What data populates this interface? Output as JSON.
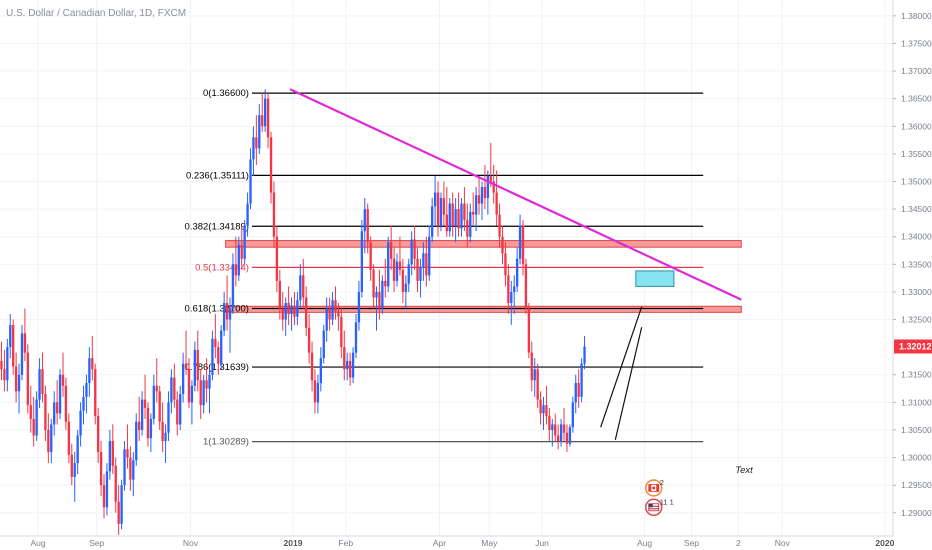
{
  "chart_data": {
    "type": "candlestick",
    "title": "U.S. Dollar / Canadian Dollar, 1D, FXCM",
    "y_axis": {
      "min": 1.2875,
      "max": 1.3825,
      "tick_labels": [
        "1.38000",
        "1.37500",
        "1.37000",
        "1.36500",
        "1.36000",
        "1.35500",
        "1.35000",
        "1.34500",
        "1.34000",
        "1.33500",
        "1.33000",
        "1.32500",
        "1.31500",
        "1.31000",
        "1.30500",
        "1.30000",
        "1.29500",
        "1.29000"
      ],
      "tick_values": [
        1.38,
        1.375,
        1.37,
        1.365,
        1.36,
        1.355,
        1.35,
        1.345,
        1.34,
        1.335,
        1.33,
        1.325,
        1.315,
        1.31,
        1.305,
        1.3,
        1.295,
        1.29
      ]
    },
    "x_axis": {
      "tick_labels": [
        "Aug",
        "Sep",
        "Nov",
        "2019",
        "Feb",
        "Apr",
        "May",
        "Jun",
        "Aug",
        "Sep",
        "2",
        "Nov",
        "2020"
      ],
      "bold_labels": [
        "2019",
        "2020"
      ],
      "tick_bars": [
        13,
        33,
        65,
        100,
        118,
        150,
        167,
        185,
        220,
        236,
        252,
        267,
        302
      ]
    },
    "last_price": {
      "label": "1.32012",
      "value": 1.32012
    },
    "fibonacci": [
      {
        "label": "0(1.36600)",
        "value": 1.366,
        "color": "#000000"
      },
      {
        "label": "0.236(1.35111)",
        "value": 1.35111,
        "color": "#000000"
      },
      {
        "label": "0.382(1.34189)",
        "value": 1.34189,
        "color": "#000000"
      },
      {
        "label": "0.5(1.33444)",
        "value": 1.33444,
        "color": "#e8374a"
      },
      {
        "label": "0.618(1.32700)",
        "value": 1.327,
        "color": "#000000"
      },
      {
        "label": "0.786(1.31639)",
        "value": 1.31639,
        "color": "#000000"
      },
      {
        "label": "1(1.30289)",
        "value": 1.30289,
        "color": "#555555"
      }
    ],
    "fib_x_range_bars": [
      86,
      240
    ],
    "zones": [
      {
        "from_bar": 77,
        "to_bar": 253,
        "low": 1.3381,
        "high": 1.3393,
        "color": "#f07a7a"
      },
      {
        "from_bar": 77,
        "to_bar": 253,
        "low": 1.3263,
        "high": 1.3274,
        "color": "#f07a7a"
      },
      {
        "from_bar": 217,
        "to_bar": 230,
        "low": 1.331,
        "high": 1.3338,
        "color": "#7fe3ef"
      }
    ],
    "trendline": {
      "from": [
        99,
        1.3667
      ],
      "to": [
        253,
        1.3286
      ],
      "color": "#e028d8"
    },
    "wedge_lines": [
      {
        "from": [
          205,
          1.3055
        ],
        "to": [
          219,
          1.3273
        ]
      },
      {
        "from": [
          210,
          1.3032
        ],
        "to": [
          219,
          1.3236
        ]
      }
    ],
    "annotation": "Text",
    "events": [
      {
        "flag": "CAD",
        "count": "2",
        "bar": 218,
        "y": 1.2945
      },
      {
        "flag": "USD",
        "count": "11 1",
        "bar": 218,
        "y": 1.291
      }
    ],
    "candles": [
      [
        1.3175,
        1.321,
        1.314,
        1.316
      ],
      [
        1.316,
        1.3195,
        1.312,
        1.314
      ],
      [
        1.314,
        1.3215,
        1.312,
        1.32
      ],
      [
        1.32,
        1.326,
        1.318,
        1.324
      ],
      [
        1.324,
        1.325,
        1.315,
        1.3165
      ],
      [
        1.3165,
        1.319,
        1.31,
        1.312
      ],
      [
        1.312,
        1.317,
        1.308,
        1.315
      ],
      [
        1.315,
        1.324,
        1.314,
        1.3225
      ],
      [
        1.3225,
        1.327,
        1.3175,
        1.319
      ],
      [
        1.319,
        1.3205,
        1.308,
        1.3095
      ],
      [
        1.3095,
        1.313,
        1.3045,
        1.307
      ],
      [
        1.307,
        1.311,
        1.302,
        1.304
      ],
      [
        1.304,
        1.312,
        1.303,
        1.3105
      ],
      [
        1.3105,
        1.318,
        1.309,
        1.316
      ],
      [
        1.316,
        1.319,
        1.31,
        1.3115
      ],
      [
        1.3115,
        1.313,
        1.303,
        1.305
      ],
      [
        1.305,
        1.308,
        1.299,
        1.301
      ],
      [
        1.301,
        1.307,
        1.299,
        1.306
      ],
      [
        1.306,
        1.312,
        1.304,
        1.31
      ],
      [
        1.31,
        1.314,
        1.306,
        1.308
      ],
      [
        1.308,
        1.316,
        1.307,
        1.315
      ],
      [
        1.315,
        1.319,
        1.311,
        1.313
      ],
      [
        1.313,
        1.3145,
        1.305,
        1.3065
      ],
      [
        1.3065,
        1.308,
        1.299,
        1.3005
      ],
      [
        1.3005,
        1.3025,
        1.295,
        1.2965
      ],
      [
        1.2965,
        1.301,
        1.292,
        1.299
      ],
      [
        1.299,
        1.305,
        1.297,
        1.304
      ],
      [
        1.304,
        1.31,
        1.302,
        1.3085
      ],
      [
        1.3085,
        1.313,
        1.306,
        1.311
      ],
      [
        1.311,
        1.315,
        1.308,
        1.3135
      ],
      [
        1.3135,
        1.32,
        1.311,
        1.318
      ],
      [
        1.318,
        1.322,
        1.314,
        1.316
      ],
      [
        1.316,
        1.317,
        1.306,
        1.3075
      ],
      [
        1.3075,
        1.309,
        1.299,
        1.301
      ],
      [
        1.301,
        1.303,
        1.293,
        1.295
      ],
      [
        1.295,
        1.297,
        1.289,
        1.291
      ],
      [
        1.291,
        1.299,
        1.2895,
        1.2975
      ],
      [
        1.2975,
        1.305,
        1.296,
        1.303
      ],
      [
        1.303,
        1.306,
        1.297,
        1.2985
      ],
      [
        1.2985,
        1.3,
        1.29,
        1.292
      ],
      [
        1.292,
        1.295,
        1.286,
        1.288
      ],
      [
        1.288,
        1.296,
        1.287,
        1.295
      ],
      [
        1.295,
        1.303,
        1.294,
        1.3015
      ],
      [
        1.3015,
        1.306,
        1.298,
        1.3
      ],
      [
        1.3,
        1.302,
        1.294,
        1.296
      ],
      [
        1.296,
        1.301,
        1.293,
        1.2995
      ],
      [
        1.2995,
        1.308,
        1.2985,
        1.3065
      ],
      [
        1.3065,
        1.311,
        1.303,
        1.305
      ],
      [
        1.305,
        1.312,
        1.304,
        1.3105
      ],
      [
        1.3105,
        1.315,
        1.307,
        1.309
      ],
      [
        1.309,
        1.31,
        1.302,
        1.3035
      ],
      [
        1.3035,
        1.308,
        1.301,
        1.307
      ],
      [
        1.307,
        1.315,
        1.306,
        1.313
      ],
      [
        1.313,
        1.318,
        1.31,
        1.312
      ],
      [
        1.312,
        1.313,
        1.305,
        1.3065
      ],
      [
        1.3065,
        1.31,
        1.301,
        1.303
      ],
      [
        1.303,
        1.306,
        1.299,
        1.3045
      ],
      [
        1.3045,
        1.312,
        1.303,
        1.31
      ],
      [
        1.31,
        1.316,
        1.308,
        1.3145
      ],
      [
        1.3145,
        1.317,
        1.309,
        1.3105
      ],
      [
        1.3105,
        1.312,
        1.304,
        1.306
      ],
      [
        1.306,
        1.313,
        1.305,
        1.3115
      ],
      [
        1.3115,
        1.319,
        1.31,
        1.317
      ],
      [
        1.317,
        1.323,
        1.315,
        1.316
      ],
      [
        1.316,
        1.318,
        1.309,
        1.31
      ],
      [
        1.31,
        1.314,
        1.306,
        1.313
      ],
      [
        1.313,
        1.321,
        1.312,
        1.3195
      ],
      [
        1.3195,
        1.323,
        1.312,
        1.314
      ],
      [
        1.314,
        1.316,
        1.307,
        1.3095
      ],
      [
        1.3095,
        1.315,
        1.308,
        1.314
      ],
      [
        1.314,
        1.318,
        1.31,
        1.3125
      ],
      [
        1.3125,
        1.316,
        1.308,
        1.315
      ],
      [
        1.315,
        1.323,
        1.314,
        1.3215
      ],
      [
        1.3215,
        1.326,
        1.318,
        1.32
      ],
      [
        1.32,
        1.321,
        1.315,
        1.317
      ],
      [
        1.317,
        1.324,
        1.316,
        1.323
      ],
      [
        1.323,
        1.33,
        1.322,
        1.328
      ],
      [
        1.328,
        1.333,
        1.323,
        1.325
      ],
      [
        1.325,
        1.329,
        1.319,
        1.327
      ],
      [
        1.327,
        1.337,
        1.326,
        1.335
      ],
      [
        1.335,
        1.34,
        1.331,
        1.333
      ],
      [
        1.333,
        1.34,
        1.332,
        1.3385
      ],
      [
        1.3385,
        1.342,
        1.334,
        1.336
      ],
      [
        1.336,
        1.343,
        1.335,
        1.342
      ],
      [
        1.342,
        1.348,
        1.34,
        1.346
      ],
      [
        1.346,
        1.356,
        1.345,
        1.354
      ],
      [
        1.354,
        1.36,
        1.351,
        1.358
      ],
      [
        1.358,
        1.362,
        1.353,
        1.356
      ],
      [
        1.356,
        1.364,
        1.355,
        1.362
      ],
      [
        1.362,
        1.366,
        1.359,
        1.36
      ],
      [
        1.36,
        1.3667,
        1.359,
        1.365
      ],
      [
        1.365,
        1.366,
        1.356,
        1.358
      ],
      [
        1.358,
        1.359,
        1.346,
        1.348
      ],
      [
        1.348,
        1.35,
        1.338,
        1.34
      ],
      [
        1.34,
        1.342,
        1.33,
        1.332
      ],
      [
        1.332,
        1.334,
        1.325,
        1.327
      ],
      [
        1.327,
        1.33,
        1.323,
        1.325
      ],
      [
        1.325,
        1.329,
        1.322,
        1.328
      ],
      [
        1.328,
        1.331,
        1.324,
        1.326
      ],
      [
        1.326,
        1.329,
        1.323,
        1.3275
      ],
      [
        1.3275,
        1.33,
        1.324,
        1.3255
      ],
      [
        1.3255,
        1.33,
        1.324,
        1.3285
      ],
      [
        1.3285,
        1.335,
        1.327,
        1.333
      ],
      [
        1.333,
        1.336,
        1.327,
        1.329
      ],
      [
        1.329,
        1.331,
        1.322,
        1.3235
      ],
      [
        1.3235,
        1.326,
        1.317,
        1.319
      ],
      [
        1.319,
        1.321,
        1.312,
        1.314
      ],
      [
        1.314,
        1.316,
        1.308,
        1.31
      ],
      [
        1.31,
        1.315,
        1.308,
        1.3135
      ],
      [
        1.3135,
        1.32,
        1.312,
        1.318
      ],
      [
        1.318,
        1.324,
        1.317,
        1.323
      ],
      [
        1.323,
        1.329,
        1.321,
        1.327
      ],
      [
        1.327,
        1.329,
        1.323,
        1.325
      ],
      [
        1.325,
        1.33,
        1.324,
        1.3285
      ],
      [
        1.3285,
        1.331,
        1.325,
        1.3265
      ],
      [
        1.3265,
        1.328,
        1.323,
        1.3255
      ],
      [
        1.3255,
        1.327,
        1.318,
        1.32
      ],
      [
        1.32,
        1.323,
        1.314,
        1.316
      ],
      [
        1.316,
        1.319,
        1.314,
        1.3175
      ],
      [
        1.3175,
        1.319,
        1.313,
        1.3145
      ],
      [
        1.3145,
        1.32,
        1.3135,
        1.319
      ],
      [
        1.319,
        1.326,
        1.318,
        1.3245
      ],
      [
        1.3245,
        1.332,
        1.323,
        1.33
      ],
      [
        1.33,
        1.343,
        1.329,
        1.341
      ],
      [
        1.341,
        1.347,
        1.337,
        1.345
      ],
      [
        1.345,
        1.346,
        1.337,
        1.339
      ],
      [
        1.339,
        1.34,
        1.332,
        1.334
      ],
      [
        1.334,
        1.335,
        1.327,
        1.329
      ],
      [
        1.329,
        1.331,
        1.323,
        1.33
      ],
      [
        1.33,
        1.334,
        1.325,
        1.327
      ],
      [
        1.327,
        1.333,
        1.326,
        1.332
      ],
      [
        1.332,
        1.336,
        1.329,
        1.331
      ],
      [
        1.331,
        1.34,
        1.33,
        1.339
      ],
      [
        1.339,
        1.342,
        1.334,
        1.336
      ],
      [
        1.336,
        1.338,
        1.33,
        1.332
      ],
      [
        1.332,
        1.337,
        1.331,
        1.3355
      ],
      [
        1.3355,
        1.34,
        1.333,
        1.334
      ],
      [
        1.334,
        1.336,
        1.328,
        1.33
      ],
      [
        1.33,
        1.333,
        1.327,
        1.3315
      ],
      [
        1.3315,
        1.336,
        1.33,
        1.335
      ],
      [
        1.335,
        1.341,
        1.333,
        1.3395
      ],
      [
        1.3395,
        1.342,
        1.334,
        1.336
      ],
      [
        1.336,
        1.338,
        1.33,
        1.332
      ],
      [
        1.332,
        1.336,
        1.329,
        1.3345
      ],
      [
        1.3345,
        1.339,
        1.332,
        1.337
      ],
      [
        1.337,
        1.34,
        1.331,
        1.333
      ],
      [
        1.333,
        1.342,
        1.332,
        1.34
      ],
      [
        1.34,
        1.347,
        1.339,
        1.3455
      ],
      [
        1.3455,
        1.351,
        1.342,
        1.348
      ],
      [
        1.348,
        1.35,
        1.34,
        1.342
      ],
      [
        1.342,
        1.348,
        1.341,
        1.347
      ],
      [
        1.347,
        1.35,
        1.342,
        1.344
      ],
      [
        1.344,
        1.349,
        1.34,
        1.341
      ],
      [
        1.341,
        1.347,
        1.34,
        1.346
      ],
      [
        1.346,
        1.348,
        1.34,
        1.342
      ],
      [
        1.342,
        1.347,
        1.339,
        1.345
      ],
      [
        1.345,
        1.348,
        1.34,
        1.3415
      ],
      [
        1.3415,
        1.347,
        1.34,
        1.346
      ],
      [
        1.346,
        1.349,
        1.341,
        1.343
      ],
      [
        1.343,
        1.346,
        1.338,
        1.34
      ],
      [
        1.34,
        1.346,
        1.339,
        1.3445
      ],
      [
        1.3445,
        1.348,
        1.342,
        1.344
      ],
      [
        1.344,
        1.349,
        1.341,
        1.3475
      ],
      [
        1.3475,
        1.351,
        1.344,
        1.346
      ],
      [
        1.346,
        1.35,
        1.343,
        1.349
      ],
      [
        1.349,
        1.353,
        1.345,
        1.347
      ],
      [
        1.347,
        1.352,
        1.344,
        1.351
      ],
      [
        1.351,
        1.357,
        1.349,
        1.35
      ],
      [
        1.35,
        1.353,
        1.346,
        1.348
      ],
      [
        1.348,
        1.352,
        1.342,
        1.344
      ],
      [
        1.344,
        1.346,
        1.338,
        1.34
      ],
      [
        1.34,
        1.342,
        1.335,
        1.337
      ],
      [
        1.337,
        1.339,
        1.331,
        1.333
      ],
      [
        1.333,
        1.335,
        1.326,
        1.328
      ],
      [
        1.328,
        1.332,
        1.324,
        1.33
      ],
      [
        1.33,
        1.333,
        1.326,
        1.331
      ],
      [
        1.331,
        1.338,
        1.33,
        1.336
      ],
      [
        1.336,
        1.344,
        1.335,
        1.342
      ],
      [
        1.342,
        1.343,
        1.333,
        1.335
      ],
      [
        1.335,
        1.336,
        1.326,
        1.327
      ],
      [
        1.327,
        1.328,
        1.318,
        1.319
      ],
      [
        1.319,
        1.321,
        1.312,
        1.314
      ],
      [
        1.314,
        1.318,
        1.311,
        1.316
      ],
      [
        1.316,
        1.317,
        1.309,
        1.3105
      ],
      [
        1.3105,
        1.312,
        1.306,
        1.308
      ],
      [
        1.308,
        1.311,
        1.305,
        1.3095
      ],
      [
        1.3095,
        1.313,
        1.306,
        1.3075
      ],
      [
        1.3075,
        1.309,
        1.303,
        1.305
      ],
      [
        1.305,
        1.307,
        1.302,
        1.306
      ],
      [
        1.306,
        1.308,
        1.303,
        1.304
      ],
      [
        1.304,
        1.306,
        1.3015,
        1.303
      ],
      [
        1.303,
        1.307,
        1.302,
        1.306
      ],
      [
        1.306,
        1.309,
        1.303,
        1.3045
      ],
      [
        1.3045,
        1.306,
        1.301,
        1.3025
      ],
      [
        1.3025,
        1.306,
        1.302,
        1.3055
      ],
      [
        1.3055,
        1.311,
        1.3045,
        1.31
      ],
      [
        1.31,
        1.315,
        1.308,
        1.3135
      ],
      [
        1.3135,
        1.316,
        1.309,
        1.311
      ],
      [
        1.311,
        1.318,
        1.31,
        1.317
      ],
      [
        1.317,
        1.322,
        1.316,
        1.3201
      ]
    ]
  }
}
